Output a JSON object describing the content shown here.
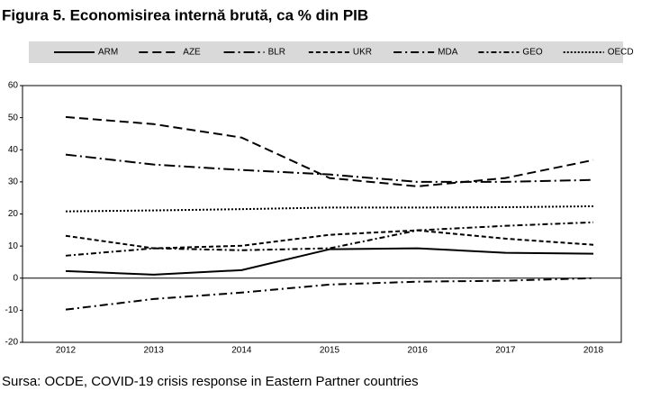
{
  "chart_data": {
    "type": "line",
    "title": "Figura 5. Economisirea internă brută, ca % din PIB",
    "source": "Sursa: OCDE, COVID-19 crisis response in Eastern Partner countries",
    "categories": [
      "2012",
      "2013",
      "2014",
      "2015",
      "2016",
      "2017",
      "2018"
    ],
    "ylim": [
      -20,
      60
    ],
    "yticks": [
      -20,
      -10,
      0,
      10,
      20,
      30,
      40,
      50,
      60
    ],
    "series": [
      {
        "name": "ARM",
        "color": "#000000",
        "style": "solid",
        "values": [
          2.2,
          1.1,
          2.5,
          9,
          9.3,
          7.9,
          7.6
        ]
      },
      {
        "name": "AZE",
        "color": "#000000",
        "style": "long-dash",
        "values": [
          50.2,
          48,
          43.8,
          31.2,
          28.6,
          31.2,
          36.8
        ]
      },
      {
        "name": "BLR",
        "color": "#000000",
        "style": "long-dash-dot",
        "values": [
          38.5,
          35.4,
          33.7,
          32.3,
          30,
          30,
          30.6
        ]
      },
      {
        "name": "UKR",
        "color": "#000000",
        "style": "short-dash",
        "values": [
          13.2,
          9.3,
          10.1,
          13.5,
          14.9,
          12.3,
          10.4
        ]
      },
      {
        "name": "MDA",
        "color": "#000000",
        "style": "dash-dot",
        "values": [
          -9.8,
          -6.5,
          -4.5,
          -2,
          -1.1,
          -0.8,
          0
        ]
      },
      {
        "name": "GEO",
        "color": "#000000",
        "style": "dash-dot-short",
        "values": [
          7,
          9.3,
          8.7,
          9.3,
          14.9,
          16.3,
          17.4
        ]
      },
      {
        "name": "OECD",
        "color": "#000000",
        "style": "dotted",
        "values": [
          20.8,
          21.1,
          21.5,
          22,
          22,
          22.1,
          22.4
        ]
      }
    ]
  }
}
